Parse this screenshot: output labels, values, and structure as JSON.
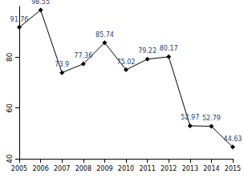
{
  "chart_data": {
    "type": "line",
    "categories": [
      "2005",
      "2006",
      "2007",
      "2008",
      "2009",
      "2010",
      "2011",
      "2012",
      "2013",
      "2014",
      "2015"
    ],
    "values": [
      91.76,
      98.55,
      73.9,
      77.36,
      85.74,
      75.02,
      79.22,
      80.17,
      52.97,
      52.79,
      44.63
    ],
    "color": "#000000",
    "ylim": [
      40,
      100
    ],
    "yticks": [
      40,
      60,
      80
    ],
    "grid": false,
    "data_labels": true,
    "marker": "diamond",
    "line_style": "solid"
  }
}
